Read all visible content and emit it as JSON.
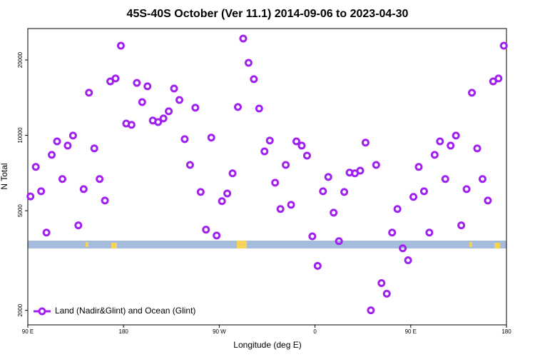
{
  "chart_data": {
    "type": "scatter",
    "title": "45S-40S October (Ver 11.1)   2014-09-06 to 2023-04-30",
    "xlabel": "Longitude (deg E)",
    "ylabel": "N Total",
    "xlim": [
      90,
      540
    ],
    "xticks": [
      {
        "value": 90,
        "label": "90 E"
      },
      {
        "value": 180,
        "label": "180"
      },
      {
        "value": 270,
        "label": "90 W"
      },
      {
        "value": 360,
        "label": "0"
      },
      {
        "value": 450,
        "label": "90 E"
      },
      {
        "value": 540,
        "label": "180"
      }
    ],
    "ylim": [
      1750,
      26700
    ],
    "yscale": "log",
    "yticks": [
      2000,
      5000,
      10000,
      20000
    ],
    "legend": "lower left",
    "series": [
      {
        "name": "Land (Nadir&Glint) and Ocean (Glint)",
        "color": "#a020f0",
        "x": [
          92.5,
          97.5,
          102.5,
          107.5,
          112.5,
          117.5,
          122.5,
          127.5,
          132.5,
          137.5,
          142.5,
          147.5,
          152.5,
          157.5,
          162.5,
          167.5,
          172.5,
          177.5,
          182.5,
          187.5,
          192.5,
          197.5,
          202.5,
          207.5,
          212.5,
          217.5,
          222.5,
          227.5,
          232.5,
          237.5,
          242.5,
          247.5,
          252.5,
          257.5,
          262.5,
          267.5,
          272.5,
          277.5,
          282.5,
          287.5,
          292.5,
          297.5,
          302.5,
          307.5,
          312.5,
          317.5,
          322.5,
          327.5,
          332.5,
          337.5,
          342.5,
          347.5,
          352.5,
          357.5,
          362.5,
          367.5,
          372.5,
          377.5,
          382.5,
          387.5,
          392.5,
          397.5,
          402.5,
          407.5,
          412.5,
          417.5,
          422.5,
          427.5,
          432.5,
          437.5,
          442.5,
          447.5,
          452.5,
          457.5,
          462.5,
          467.5,
          472.5,
          477.5,
          482.5,
          487.5,
          492.5,
          497.5,
          502.5,
          507.5,
          512.5,
          517.5,
          522.5,
          527.5,
          532.5,
          537.5
        ],
        "values": [
          5700,
          7480,
          5980,
          4090,
          8360,
          9460,
          6690,
          9100,
          9980,
          4370,
          6100,
          14800,
          8870,
          6690,
          5490,
          16420,
          16870,
          22800,
          11150,
          11010,
          16200,
          13580,
          15700,
          11460,
          11300,
          11680,
          12480,
          15380,
          13850,
          9660,
          7620,
          12890,
          5940,
          4200,
          9790,
          3980,
          5460,
          5860,
          7050,
          12980,
          24360,
          19480,
          16760,
          12800,
          8630,
          9530,
          6470,
          5080,
          7620,
          5280,
          9460,
          9100,
          8300,
          3950,
          3010,
          5980,
          6820,
          4910,
          3780,
          5940,
          7100,
          7050,
          7230,
          9350,
          2000,
          7620,
          2570,
          2330,
          4090,
          5080,
          3540,
          3170,
          5680,
          7480,
          5980,
          4090,
          8360,
          9460,
          6690,
          9100,
          9980,
          4370,
          6100,
          14800,
          8870,
          6690,
          5490,
          16420,
          16870,
          22800
        ]
      }
    ]
  }
}
